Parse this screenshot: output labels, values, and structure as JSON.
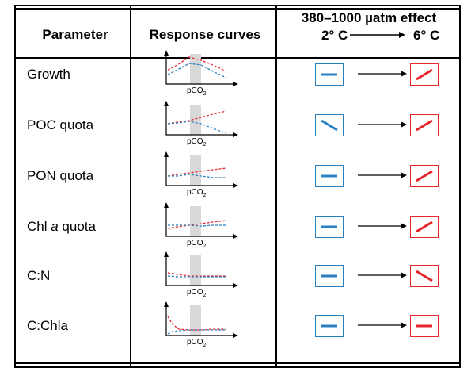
{
  "header": {
    "parameter": "Parameter",
    "response_curves": "Response curves",
    "effect_line1": "380–1000 µatm  effect",
    "temp_low": "2° C",
    "temp_high": "6° C"
  },
  "axis_label": "pCO",
  "axis_subscript": "2",
  "rows": [
    {
      "label_pre": "Growth",
      "label_italic": "",
      "label_post": "",
      "low_effect": "flat",
      "high_effect": "increase"
    },
    {
      "label_pre": "POC quota",
      "label_italic": "",
      "label_post": "",
      "low_effect": "decrease",
      "high_effect": "increase"
    },
    {
      "label_pre": "PON quota",
      "label_italic": "",
      "label_post": "",
      "low_effect": "flat",
      "high_effect": "increase"
    },
    {
      "label_pre": "Chl ",
      "label_italic": "a",
      "label_post": " quota",
      "low_effect": "flat",
      "high_effect": "increase"
    },
    {
      "label_pre": "C:N",
      "label_italic": "",
      "label_post": "",
      "low_effect": "flat",
      "high_effect": "decrease"
    },
    {
      "label_pre": "C:Chla",
      "label_italic": "",
      "label_post": "",
      "low_effect": "flat",
      "high_effect": "flat"
    }
  ],
  "colors": {
    "low_temp": "#2a7fc0",
    "high_temp": "#e8252b",
    "shade": "#d9d9d9"
  }
}
